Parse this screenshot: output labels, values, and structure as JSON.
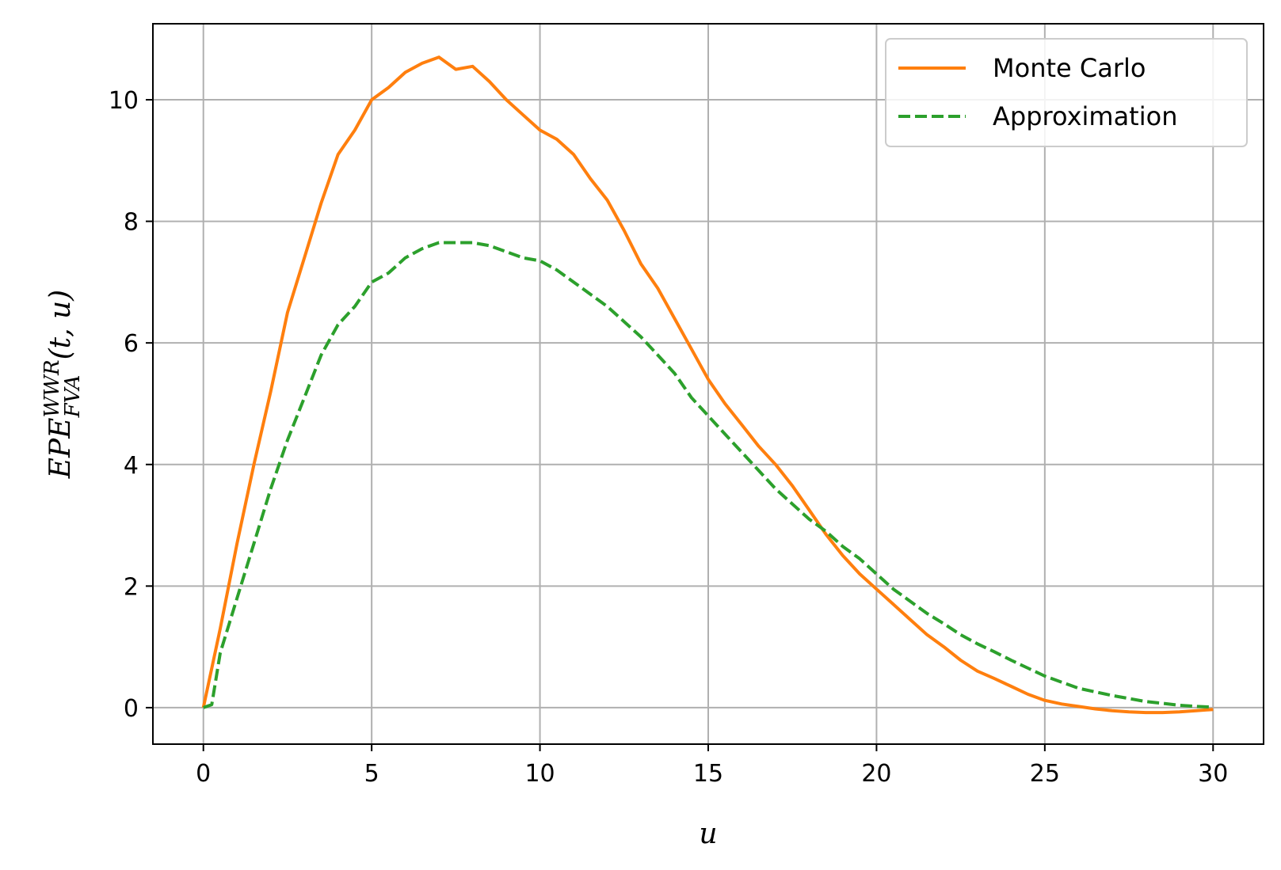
{
  "chart_data": {
    "type": "line",
    "xlabel": "u",
    "ylabel": {
      "base": "EPE",
      "superscript": "WWR",
      "subscript": "FVA",
      "suffix": "(t, u)"
    },
    "xlim": [
      -1.5,
      31.5
    ],
    "ylim": [
      -0.6,
      11.25
    ],
    "xticks": [
      0,
      5,
      10,
      15,
      20,
      25,
      30
    ],
    "yticks": [
      0,
      2,
      4,
      6,
      8,
      10
    ],
    "grid": true,
    "legend_position": "top-right",
    "series": [
      {
        "name": "Monte Carlo",
        "color": "#ff7f0e",
        "style": "solid",
        "x": [
          0,
          0.5,
          1,
          1.5,
          2,
          2.5,
          3,
          3.5,
          4,
          4.5,
          5,
          5.5,
          6,
          6.5,
          7,
          7.5,
          8,
          8.5,
          9,
          9.5,
          10,
          10.5,
          11,
          11.5,
          12,
          12.5,
          13,
          13.5,
          14,
          14.5,
          15,
          15.5,
          16,
          16.5,
          17,
          17.5,
          18,
          18.5,
          19,
          19.5,
          20,
          20.5,
          21,
          21.5,
          22,
          22.5,
          23,
          23.5,
          24,
          24.5,
          25,
          25.5,
          26,
          26.5,
          27,
          27.5,
          28,
          28.5,
          29,
          29.5,
          30
        ],
        "y": [
          0,
          1.3,
          2.7,
          4.0,
          5.2,
          6.5,
          7.4,
          8.3,
          9.1,
          9.5,
          10.0,
          10.2,
          10.45,
          10.6,
          10.7,
          10.5,
          10.55,
          10.3,
          10.0,
          9.75,
          9.5,
          9.35,
          9.1,
          8.7,
          8.35,
          7.85,
          7.3,
          6.9,
          6.4,
          5.9,
          5.4,
          5.0,
          4.65,
          4.3,
          4.0,
          3.65,
          3.25,
          2.85,
          2.5,
          2.2,
          1.95,
          1.7,
          1.45,
          1.2,
          1.0,
          0.78,
          0.6,
          0.48,
          0.35,
          0.22,
          0.12,
          0.06,
          0.02,
          -0.02,
          -0.05,
          -0.07,
          -0.08,
          -0.08,
          -0.07,
          -0.05,
          -0.03
        ]
      },
      {
        "name": "Approximation",
        "color": "#2ca02c",
        "style": "dashed",
        "x": [
          0,
          0.25,
          0.5,
          1,
          1.5,
          2,
          2.5,
          3,
          3.5,
          4,
          4.5,
          5,
          5.5,
          6,
          6.5,
          7,
          7.5,
          8,
          8.5,
          9,
          9.5,
          10,
          10.5,
          11,
          11.5,
          12,
          12.5,
          13,
          13.5,
          14,
          14.5,
          15,
          15.5,
          16,
          16.5,
          17,
          17.5,
          18,
          18.5,
          19,
          19.5,
          20,
          20.5,
          21,
          21.5,
          22,
          22.5,
          23,
          23.5,
          24,
          24.5,
          25,
          25.5,
          26,
          26.5,
          27,
          27.5,
          28,
          28.5,
          29,
          29.5,
          30
        ],
        "y": [
          0,
          0.05,
          0.9,
          1.8,
          2.7,
          3.6,
          4.4,
          5.1,
          5.8,
          6.3,
          6.6,
          7.0,
          7.15,
          7.4,
          7.55,
          7.65,
          7.65,
          7.65,
          7.6,
          7.5,
          7.4,
          7.35,
          7.2,
          7.0,
          6.8,
          6.6,
          6.35,
          6.1,
          5.8,
          5.5,
          5.1,
          4.8,
          4.5,
          4.2,
          3.9,
          3.6,
          3.35,
          3.1,
          2.9,
          2.65,
          2.45,
          2.2,
          1.95,
          1.75,
          1.55,
          1.38,
          1.2,
          1.05,
          0.92,
          0.78,
          0.65,
          0.52,
          0.42,
          0.32,
          0.26,
          0.2,
          0.15,
          0.1,
          0.07,
          0.04,
          0.02,
          0.01
        ]
      }
    ]
  }
}
